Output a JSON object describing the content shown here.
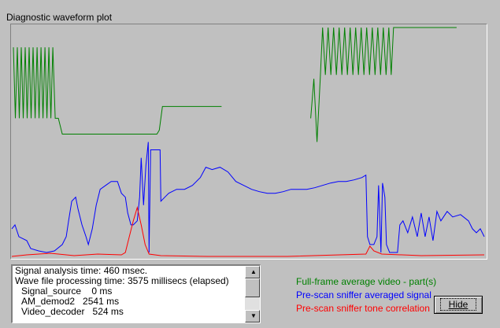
{
  "chart_data": {
    "type": "line",
    "title": "Diagnostic waveform plot",
    "xlim": [
      0,
      603
    ],
    "ylim": [
      0,
      297
    ],
    "series": [
      {
        "name": "Full-frame average video - part(s)",
        "color": "#008000",
        "x": [
          3,
          5.5,
          8,
          10.5,
          13,
          15.5,
          18,
          20.5,
          23,
          25.5,
          28,
          30.5,
          33,
          35.5,
          38,
          40.5,
          43,
          45.5,
          48,
          50.5,
          53,
          56,
          60,
          65,
          185,
          188,
          192,
          267,
          268,
          380,
          384,
          388,
          392,
          395,
          398.5,
          402,
          405.5,
          409,
          412.5,
          416,
          419.5,
          423,
          426.5,
          430,
          433.5,
          437,
          440.5,
          444,
          447.5,
          451,
          454.5,
          458,
          461.5,
          465,
          468.5,
          472,
          475.5,
          479,
          482,
          485,
          565
        ],
        "values": [
          268,
          178,
          268,
          178,
          268,
          178,
          268,
          178,
          268,
          178,
          268,
          178,
          268,
          178,
          268,
          178,
          268,
          178,
          268,
          178,
          268,
          178,
          178,
          158,
          158,
          163,
          193,
          193,
          null,
          178,
          228,
          148,
          228,
          293,
          233,
          293,
          233,
          293,
          233,
          293,
          233,
          293,
          233,
          293,
          233,
          293,
          233,
          293,
          233,
          293,
          233,
          293,
          233,
          293,
          233,
          293,
          233,
          293,
          233,
          293,
          293
        ]
      },
      {
        "name": "Pre-scan sniffer averaged signal",
        "color": "#0000ff",
        "x": [
          1,
          5,
          10,
          20,
          25,
          35,
          45,
          55,
          65,
          70,
          73,
          77,
          82,
          85,
          90,
          95,
          98,
          103,
          108,
          113,
          120,
          127,
          135,
          140,
          145,
          148,
          152,
          155,
          160,
          163,
          165,
          168,
          171,
          174,
          175,
          177,
          185,
          189,
          190,
          195,
          200,
          210,
          220,
          230,
          240,
          247,
          255,
          265,
          275,
          285,
          295,
          305,
          315,
          325,
          335,
          345,
          355,
          365,
          375,
          385,
          395,
          405,
          415,
          425,
          435,
          445,
          450,
          452,
          455,
          460,
          464,
          466,
          469,
          471,
          474,
          476,
          480,
          490,
          493,
          497,
          503,
          509,
          515,
          520,
          525,
          530,
          535,
          540,
          545,
          553,
          560,
          570,
          580,
          585,
          590,
          595,
          600
        ],
        "values": [
          38,
          43,
          28,
          23,
          13,
          10,
          8,
          10,
          18,
          28,
          48,
          73,
          78,
          63,
          43,
          28,
          18,
          38,
          68,
          88,
          93,
          98,
          98,
          83,
          78,
          58,
          43,
          43,
          48,
          78,
          128,
          68,
          118,
          148,
          8,
          138,
          138,
          138,
          73,
          78,
          83,
          88,
          88,
          93,
          103,
          116,
          113,
          116,
          110,
          98,
          93,
          88,
          85,
          83,
          83,
          85,
          88,
          88,
          88,
          90,
          93,
          96,
          98,
          98,
          100,
          103,
          106,
          28,
          18,
          18,
          28,
          93,
          8,
          96,
          78,
          18,
          8,
          8,
          43,
          48,
          33,
          53,
          28,
          58,
          28,
          53,
          23,
          60,
          48,
          60,
          53,
          56,
          48,
          38,
          33,
          38,
          28
        ]
      },
      {
        "name": "Pre-scan sniffer tone correlation",
        "color": "#ff0000",
        "x": [
          1,
          20,
          50,
          80,
          110,
          140,
          145,
          150,
          155,
          160,
          165,
          170,
          175,
          190,
          250,
          350,
          450,
          455,
          460,
          470,
          520,
          600
        ],
        "values": [
          3,
          5,
          7,
          4,
          6,
          5,
          8,
          28,
          48,
          65,
          43,
          18,
          6,
          4,
          3,
          3,
          6,
          16,
          10,
          6,
          4,
          5
        ]
      }
    ]
  },
  "log": [
    "Signal analysis time: 460 msec.",
    "Wave file processing time: 3575 millisecs (elapsed)",
    "Signal_source    0 ms",
    "AM_demod2   2541 ms",
    "Video_decoder   524 ms"
  ],
  "button": "Hide"
}
